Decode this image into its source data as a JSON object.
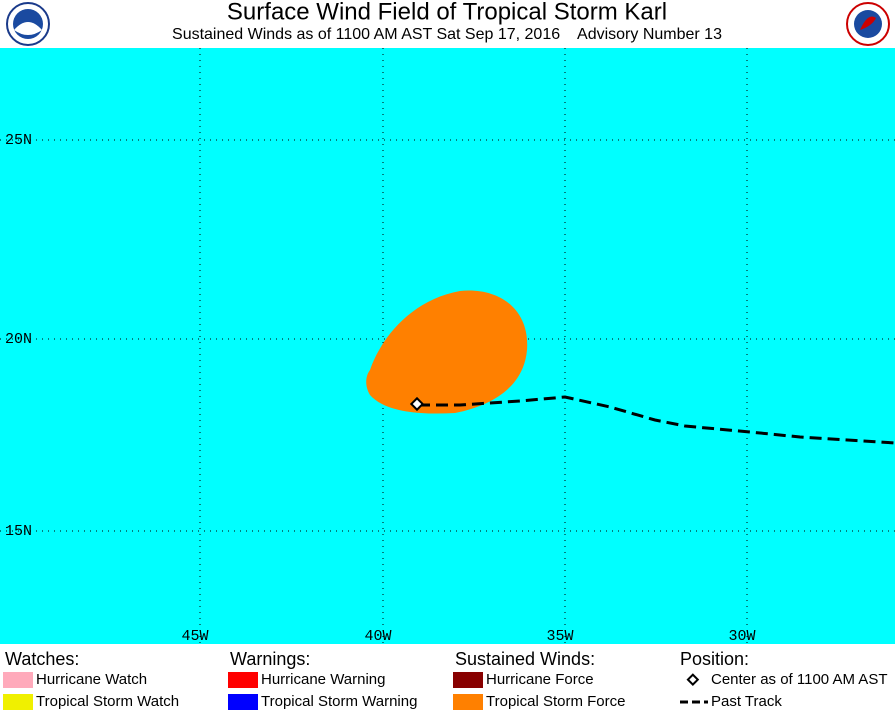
{
  "header": {
    "title": "Surface Wind Field of Tropical Storm Karl",
    "subtitle": "Sustained Winds as of 1100 AM AST Sat Sep 17, 2016    Advisory Number 13"
  },
  "map": {
    "lat_labels": [
      "25N",
      "20N",
      "15N"
    ],
    "lon_labels": [
      "45W",
      "40W",
      "35W",
      "30W"
    ],
    "wind_field_color": "#ff8000",
    "ocean_color": "#00ffff"
  },
  "legend": {
    "groups": [
      {
        "heading": "Watches:",
        "items": [
          {
            "label": "Hurricane Watch",
            "color": "#ffaabb"
          },
          {
            "label": "Tropical Storm Watch",
            "color": "#f0f000"
          }
        ]
      },
      {
        "heading": "Warnings:",
        "items": [
          {
            "label": "Hurricane Warning",
            "color": "#ff0000"
          },
          {
            "label": "Tropical Storm Warning",
            "color": "#0000ff"
          }
        ]
      },
      {
        "heading": "Sustained Winds:",
        "items": [
          {
            "label": "Hurricane Force",
            "color": "#880000"
          },
          {
            "label": "Tropical Storm Force",
            "color": "#ff8000"
          }
        ]
      },
      {
        "heading": "Position:",
        "items": [
          {
            "label": "Center as of 1100 AM AST"
          },
          {
            "label": "Past Track"
          }
        ]
      }
    ]
  }
}
